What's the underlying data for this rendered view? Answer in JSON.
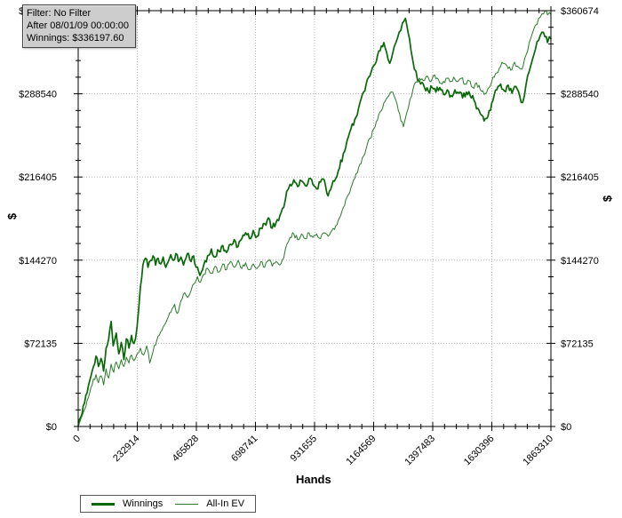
{
  "info_box": {
    "filter": "Filter: No Filter",
    "after": "After 08/01/09 00:00:00",
    "winnings": "Winnings: $336197.60"
  },
  "axes": {
    "y_left_title": "$",
    "y_right_title": "$",
    "x_title": "Hands"
  },
  "chart_data": {
    "type": "line",
    "title": "",
    "xlabel": "Hands",
    "ylabel": "$",
    "xlim": [
      0,
      1863310
    ],
    "ylim": [
      0,
      360674
    ],
    "grid": "dotted",
    "grid_color": "#b5b5b5",
    "legend_position": "bottom-left",
    "x_tick_values": [
      0,
      232914,
      465828,
      698741,
      931655,
      1164569,
      1397483,
      1630396,
      1863310
    ],
    "x_tick_labels": [
      "0",
      "232914",
      "465828",
      "698741",
      "931655",
      "1164569",
      "1397483",
      "1630396",
      "1863310"
    ],
    "y_tick_values": [
      0,
      72135,
      144270,
      216405,
      288540,
      360674
    ],
    "y_tick_labels": [
      "$0",
      "$72135",
      "$144270",
      "$216405",
      "$288540",
      "$360674"
    ],
    "series": [
      {
        "name": "Winnings",
        "color": "#086808",
        "line_width": 1.7,
        "final_value": 336197.6,
        "points": [
          [
            0,
            0
          ],
          [
            20000,
            18000
          ],
          [
            40000,
            35000
          ],
          [
            55000,
            48000
          ],
          [
            70000,
            61000
          ],
          [
            80000,
            52000
          ],
          [
            90000,
            59000
          ],
          [
            100000,
            48000
          ],
          [
            110000,
            68000
          ],
          [
            120000,
            76000
          ],
          [
            130000,
            91000
          ],
          [
            138000,
            70000
          ],
          [
            150000,
            81000
          ],
          [
            160000,
            63000
          ],
          [
            170000,
            73000
          ],
          [
            180000,
            58000
          ],
          [
            190000,
            76000
          ],
          [
            200000,
            68000
          ],
          [
            210000,
            79000
          ],
          [
            220000,
            72000
          ],
          [
            232000,
            86000
          ],
          [
            245000,
            121000
          ],
          [
            255000,
            140000
          ],
          [
            265000,
            146000
          ],
          [
            275000,
            138000
          ],
          [
            285000,
            144000
          ],
          [
            295000,
            148000
          ],
          [
            305000,
            140000
          ],
          [
            315000,
            146000
          ],
          [
            325000,
            141000
          ],
          [
            335000,
            147000
          ],
          [
            345000,
            138000
          ],
          [
            355000,
            143000
          ],
          [
            365000,
            149000
          ],
          [
            375000,
            144000
          ],
          [
            385000,
            150000
          ],
          [
            395000,
            143000
          ],
          [
            405000,
            147000
          ],
          [
            415000,
            140000
          ],
          [
            425000,
            146000
          ],
          [
            435000,
            150000
          ],
          [
            445000,
            143000
          ],
          [
            455000,
            148000
          ],
          [
            465000,
            138000
          ],
          [
            480000,
            131000
          ],
          [
            495000,
            140000
          ],
          [
            510000,
            148000
          ],
          [
            525000,
            154000
          ],
          [
            540000,
            147000
          ],
          [
            555000,
            152000
          ],
          [
            570000,
            157000
          ],
          [
            585000,
            151000
          ],
          [
            600000,
            158000
          ],
          [
            615000,
            162000
          ],
          [
            630000,
            156000
          ],
          [
            645000,
            163000
          ],
          [
            660000,
            168000
          ],
          [
            675000,
            163000
          ],
          [
            690000,
            170000
          ],
          [
            705000,
            165000
          ],
          [
            720000,
            172000
          ],
          [
            735000,
            176000
          ],
          [
            750000,
            181000
          ],
          [
            765000,
            172000
          ],
          [
            780000,
            177000
          ],
          [
            795000,
            183000
          ],
          [
            810000,
            190000
          ],
          [
            822000,
            204000
          ],
          [
            835000,
            210000
          ],
          [
            850000,
            214000
          ],
          [
            865000,
            208000
          ],
          [
            880000,
            213000
          ],
          [
            895000,
            209000
          ],
          [
            910000,
            215000
          ],
          [
            925000,
            210000
          ],
          [
            940000,
            206000
          ],
          [
            955000,
            212000
          ],
          [
            970000,
            214000
          ],
          [
            985000,
            200000
          ],
          [
            1000000,
            209000
          ],
          [
            1015000,
            215000
          ],
          [
            1030000,
            224000
          ],
          [
            1045000,
            237000
          ],
          [
            1060000,
            248000
          ],
          [
            1075000,
            258000
          ],
          [
            1090000,
            266000
          ],
          [
            1105000,
            276000
          ],
          [
            1120000,
            288000
          ],
          [
            1135000,
            297000
          ],
          [
            1150000,
            304000
          ],
          [
            1165000,
            313000
          ],
          [
            1180000,
            322000
          ],
          [
            1195000,
            330000
          ],
          [
            1205000,
            333000
          ],
          [
            1215000,
            325000
          ],
          [
            1228000,
            315000
          ],
          [
            1240000,
            324000
          ],
          [
            1252000,
            333000
          ],
          [
            1265000,
            342000
          ],
          [
            1278000,
            350000
          ],
          [
            1290000,
            354000
          ],
          [
            1300000,
            342000
          ],
          [
            1312000,
            326000
          ],
          [
            1325000,
            310000
          ],
          [
            1338000,
            300000
          ],
          [
            1350000,
            297000
          ],
          [
            1365000,
            294000
          ],
          [
            1380000,
            291000
          ],
          [
            1395000,
            294000
          ],
          [
            1410000,
            290000
          ],
          [
            1425000,
            294000
          ],
          [
            1440000,
            288000
          ],
          [
            1455000,
            292000
          ],
          [
            1470000,
            287000
          ],
          [
            1485000,
            292000
          ],
          [
            1500000,
            289000
          ],
          [
            1515000,
            285000
          ],
          [
            1530000,
            290000
          ],
          [
            1545000,
            287000
          ],
          [
            1560000,
            283000
          ],
          [
            1575000,
            276000
          ],
          [
            1590000,
            270000
          ],
          [
            1605000,
            267000
          ],
          [
            1620000,
            274000
          ],
          [
            1635000,
            283000
          ],
          [
            1650000,
            292000
          ],
          [
            1665000,
            297000
          ],
          [
            1680000,
            291000
          ],
          [
            1695000,
            296000
          ],
          [
            1710000,
            289000
          ],
          [
            1725000,
            295000
          ],
          [
            1740000,
            287000
          ],
          [
            1752000,
            281000
          ],
          [
            1765000,
            296000
          ],
          [
            1778000,
            308000
          ],
          [
            1790000,
            318000
          ],
          [
            1802000,
            327000
          ],
          [
            1815000,
            335000
          ],
          [
            1828000,
            342000
          ],
          [
            1840000,
            338000
          ],
          [
            1850000,
            333000
          ],
          [
            1857000,
            338000
          ],
          [
            1863310,
            336198
          ]
        ]
      },
      {
        "name": "All-In EV",
        "color": "#2a7a2a",
        "line_width": 1,
        "points": [
          [
            0,
            0
          ],
          [
            20000,
            12000
          ],
          [
            40000,
            25000
          ],
          [
            55000,
            36000
          ],
          [
            70000,
            45000
          ],
          [
            80000,
            38000
          ],
          [
            90000,
            44000
          ],
          [
            100000,
            36000
          ],
          [
            110000,
            50000
          ],
          [
            120000,
            42000
          ],
          [
            130000,
            54000
          ],
          [
            140000,
            47000
          ],
          [
            150000,
            56000
          ],
          [
            160000,
            50000
          ],
          [
            170000,
            58000
          ],
          [
            180000,
            52000
          ],
          [
            190000,
            60000
          ],
          [
            200000,
            55000
          ],
          [
            210000,
            62000
          ],
          [
            220000,
            57000
          ],
          [
            232000,
            63000
          ],
          [
            245000,
            68000
          ],
          [
            258000,
            62000
          ],
          [
            270000,
            70000
          ],
          [
            282000,
            55000
          ],
          [
            295000,
            65000
          ],
          [
            310000,
            75000
          ],
          [
            325000,
            82000
          ],
          [
            340000,
            88000
          ],
          [
            355000,
            95000
          ],
          [
            370000,
            102000
          ],
          [
            380000,
            106000
          ],
          [
            390000,
            98000
          ],
          [
            400000,
            105000
          ],
          [
            410000,
            111000
          ],
          [
            420000,
            116000
          ],
          [
            432000,
            112000
          ],
          [
            445000,
            118000
          ],
          [
            458000,
            124000
          ],
          [
            470000,
            130000
          ],
          [
            482000,
            125000
          ],
          [
            495000,
            132000
          ],
          [
            510000,
            137000
          ],
          [
            525000,
            133000
          ],
          [
            540000,
            139000
          ],
          [
            555000,
            134000
          ],
          [
            570000,
            141000
          ],
          [
            585000,
            136000
          ],
          [
            600000,
            143000
          ],
          [
            615000,
            138000
          ],
          [
            630000,
            144000
          ],
          [
            645000,
            137000
          ],
          [
            660000,
            142000
          ],
          [
            675000,
            136000
          ],
          [
            690000,
            141000
          ],
          [
            705000,
            137000
          ],
          [
            720000,
            143000
          ],
          [
            735000,
            138000
          ],
          [
            750000,
            144000
          ],
          [
            765000,
            139000
          ],
          [
            780000,
            143000
          ],
          [
            795000,
            140000
          ],
          [
            810000,
            146000
          ],
          [
            822000,
            158000
          ],
          [
            835000,
            164000
          ],
          [
            850000,
            167000
          ],
          [
            865000,
            162000
          ],
          [
            880000,
            167000
          ],
          [
            895000,
            163000
          ],
          [
            910000,
            168000
          ],
          [
            925000,
            164000
          ],
          [
            940000,
            167000
          ],
          [
            955000,
            163000
          ],
          [
            970000,
            168000
          ],
          [
            985000,
            165000
          ],
          [
            1000000,
            170000
          ],
          [
            1015000,
            174000
          ],
          [
            1030000,
            181000
          ],
          [
            1045000,
            190000
          ],
          [
            1060000,
            199000
          ],
          [
            1075000,
            207000
          ],
          [
            1090000,
            215000
          ],
          [
            1105000,
            224000
          ],
          [
            1120000,
            233000
          ],
          [
            1135000,
            241000
          ],
          [
            1150000,
            250000
          ],
          [
            1165000,
            258000
          ],
          [
            1180000,
            266000
          ],
          [
            1195000,
            274000
          ],
          [
            1210000,
            282000
          ],
          [
            1225000,
            287000
          ],
          [
            1240000,
            290000
          ],
          [
            1252000,
            283000
          ],
          [
            1262000,
            274000
          ],
          [
            1272000,
            265000
          ],
          [
            1282000,
            260000
          ],
          [
            1295000,
            272000
          ],
          [
            1308000,
            284000
          ],
          [
            1320000,
            293000
          ],
          [
            1332000,
            299000
          ],
          [
            1345000,
            302000
          ],
          [
            1360000,
            300000
          ],
          [
            1375000,
            304000
          ],
          [
            1390000,
            299000
          ],
          [
            1405000,
            305000
          ],
          [
            1420000,
            301000
          ],
          [
            1435000,
            297000
          ],
          [
            1450000,
            302000
          ],
          [
            1465000,
            299000
          ],
          [
            1480000,
            303000
          ],
          [
            1495000,
            299000
          ],
          [
            1510000,
            302000
          ],
          [
            1525000,
            297000
          ],
          [
            1540000,
            300000
          ],
          [
            1555000,
            294000
          ],
          [
            1570000,
            298000
          ],
          [
            1585000,
            292000
          ],
          [
            1600000,
            288000
          ],
          [
            1615000,
            293000
          ],
          [
            1630000,
            299000
          ],
          [
            1645000,
            306000
          ],
          [
            1660000,
            311000
          ],
          [
            1675000,
            315000
          ],
          [
            1690000,
            313000
          ],
          [
            1705000,
            309000
          ],
          [
            1720000,
            316000
          ],
          [
            1735000,
            312000
          ],
          [
            1750000,
            310000
          ],
          [
            1765000,
            322000
          ],
          [
            1778000,
            333000
          ],
          [
            1790000,
            341000
          ],
          [
            1802000,
            348000
          ],
          [
            1815000,
            354000
          ],
          [
            1828000,
            358000
          ],
          [
            1840000,
            360674
          ],
          [
            1850000,
            357000
          ],
          [
            1857000,
            359000
          ],
          [
            1863310,
            357500
          ]
        ]
      }
    ]
  }
}
